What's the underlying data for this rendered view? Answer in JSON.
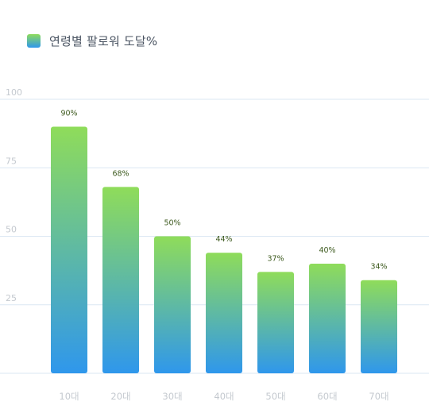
{
  "legend": {
    "label": "연령별 팔로워 도달%"
  },
  "colors": {
    "bar_top": "#8fdc5a",
    "bar_bottom": "#2f97ec",
    "grid": "#dbe7f3",
    "tick_text": "#c4c9cf",
    "value_text": "#3d5a1e"
  },
  "chart_data": {
    "type": "bar",
    "categories": [
      "10대",
      "20대",
      "30대",
      "40대",
      "50대",
      "60대",
      "70대"
    ],
    "values": [
      90,
      68,
      50,
      44,
      37,
      40,
      34
    ],
    "value_labels": [
      "90%",
      "68%",
      "50%",
      "44%",
      "37%",
      "40%",
      "34%"
    ],
    "series": [
      {
        "name": "연령별 팔로워 도달%",
        "values": [
          90,
          68,
          50,
          44,
          37,
          40,
          34
        ]
      }
    ],
    "yticks": [
      "100",
      "75",
      "50",
      "25"
    ],
    "ylim": [
      0,
      100
    ],
    "grid": true,
    "legend_position": "top-left"
  }
}
